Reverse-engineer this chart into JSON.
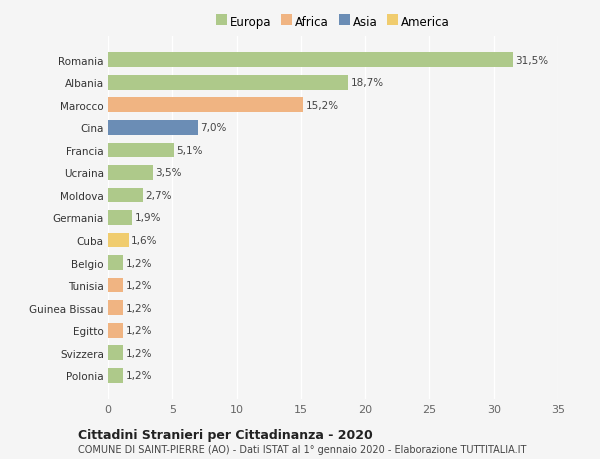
{
  "countries": [
    "Romania",
    "Albania",
    "Marocco",
    "Cina",
    "Francia",
    "Ucraina",
    "Moldova",
    "Germania",
    "Cuba",
    "Belgio",
    "Tunisia",
    "Guinea Bissau",
    "Egitto",
    "Svizzera",
    "Polonia"
  ],
  "values": [
    31.5,
    18.7,
    15.2,
    7.0,
    5.1,
    3.5,
    2.7,
    1.9,
    1.6,
    1.2,
    1.2,
    1.2,
    1.2,
    1.2,
    1.2
  ],
  "labels": [
    "31,5%",
    "18,7%",
    "15,2%",
    "7,0%",
    "5,1%",
    "3,5%",
    "2,7%",
    "1,9%",
    "1,6%",
    "1,2%",
    "1,2%",
    "1,2%",
    "1,2%",
    "1,2%",
    "1,2%"
  ],
  "colors": [
    "#aec98a",
    "#aec98a",
    "#f0b482",
    "#6b8db5",
    "#aec98a",
    "#aec98a",
    "#aec98a",
    "#aec98a",
    "#f0cc6e",
    "#aec98a",
    "#f0b482",
    "#f0b482",
    "#f0b482",
    "#aec98a",
    "#aec98a"
  ],
  "legend_labels": [
    "Europa",
    "Africa",
    "Asia",
    "America"
  ],
  "legend_colors": [
    "#aec98a",
    "#f0b482",
    "#6b8db5",
    "#f0cc6e"
  ],
  "title1": "Cittadini Stranieri per Cittadinanza - 2020",
  "title2": "COMUNE DI SAINT-PIERRE (AO) - Dati ISTAT al 1° gennaio 2020 - Elaborazione TUTTITALIA.IT",
  "xlim": [
    0,
    35
  ],
  "xticks": [
    0,
    5,
    10,
    15,
    20,
    25,
    30,
    35
  ],
  "background_color": "#f5f5f5",
  "bar_height": 0.65,
  "label_fontsize": 7.5,
  "ytick_fontsize": 7.5,
  "xtick_fontsize": 8,
  "legend_fontsize": 8.5,
  "title1_fontsize": 9,
  "title2_fontsize": 7
}
